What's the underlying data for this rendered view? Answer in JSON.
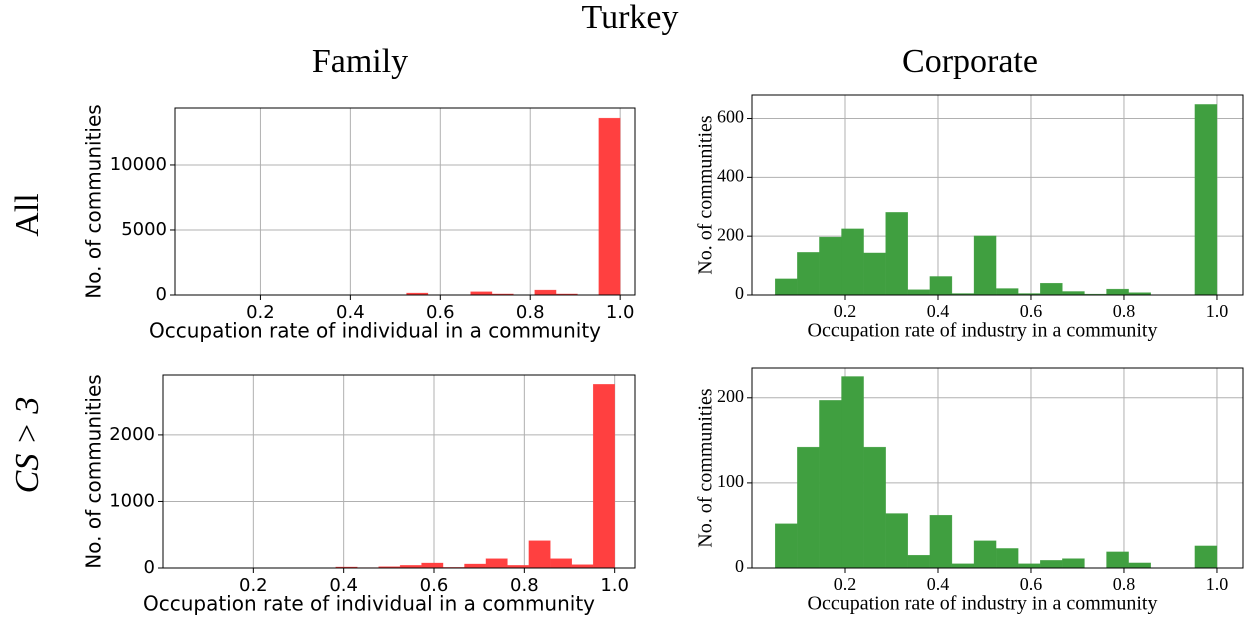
{
  "title": "Turkey",
  "column_titles": [
    "Family",
    "Corporate"
  ],
  "row_titles": [
    "All",
    "CS > 3"
  ],
  "chart_data": [
    {
      "type": "histogram",
      "xlabel": "Occupation rate of individual in a community",
      "ylabel": "No. of communities",
      "bins": [
        0.05,
        0.0975,
        0.145,
        0.1925,
        0.24,
        0.2875,
        0.335,
        0.3825,
        0.43,
        0.4775,
        0.525,
        0.5725,
        0.62,
        0.6675,
        0.715,
        0.7625,
        0.81,
        0.8575,
        0.905,
        0.9525,
        1.0
      ],
      "values": [
        0,
        0,
        0,
        0,
        0,
        0,
        0,
        0,
        0,
        0,
        150,
        20,
        0,
        250,
        80,
        0,
        380,
        80,
        0,
        13600
      ],
      "color": "#ff4040",
      "xlim": [
        0.01,
        1.033
      ],
      "ylim": [
        0,
        14380
      ],
      "xticks": [
        0.2,
        0.4,
        0.6,
        0.8,
        {
          "value": 1,
          "label": "1.0"
        }
      ],
      "yticks": [
        0,
        5000,
        10000
      ],
      "grid": true
    },
    {
      "type": "histogram",
      "xlabel": "Occupation rate of industry in a community",
      "ylabel": "No. of communities",
      "bins": [
        0.05,
        0.0975,
        0.145,
        0.1925,
        0.24,
        0.2875,
        0.335,
        0.3825,
        0.43,
        0.4775,
        0.525,
        0.5725,
        0.62,
        0.6675,
        0.715,
        0.7625,
        0.81,
        0.8575,
        0.905,
        0.9525,
        1.0
      ],
      "values": [
        55,
        145,
        197,
        225,
        143,
        281,
        18,
        63,
        5,
        201,
        22,
        5,
        40,
        12,
        3,
        20,
        8,
        0,
        0,
        648
      ],
      "color": "#409f40",
      "xlim": [
        0.0,
        1.056
      ],
      "ylim": [
        0,
        680
      ],
      "xticks": [
        0.2,
        0.4,
        0.6,
        0.8,
        {
          "value": 1,
          "label": "1.0"
        }
      ],
      "yticks": [
        0,
        200,
        400,
        600
      ],
      "grid": true
    },
    {
      "type": "histogram",
      "xlabel": "Occupation rate of individual in a community",
      "ylabel": "No. of communities",
      "bins": [
        0.05,
        0.0975,
        0.145,
        0.1925,
        0.24,
        0.2875,
        0.335,
        0.3825,
        0.43,
        0.4775,
        0.525,
        0.5725,
        0.62,
        0.6675,
        0.715,
        0.7625,
        0.81,
        0.8575,
        0.905,
        0.9525,
        1.0
      ],
      "values": [
        0,
        0,
        0,
        0,
        0,
        0,
        0,
        15,
        5,
        20,
        40,
        75,
        10,
        60,
        140,
        40,
        410,
        140,
        50,
        2760
      ],
      "color": "#ff4040",
      "xlim": [
        0.0,
        1.045
      ],
      "ylim": [
        0,
        2900
      ],
      "xticks": [
        0.2,
        0.4,
        0.6,
        0.8,
        {
          "value": 1,
          "label": "1.0"
        }
      ],
      "yticks": [
        0,
        1000,
        2000
      ],
      "grid": true
    },
    {
      "type": "histogram",
      "xlabel": "Occupation rate of industry in a community",
      "ylabel": "No. of communities",
      "bins": [
        0.05,
        0.0975,
        0.145,
        0.1925,
        0.24,
        0.2875,
        0.335,
        0.3825,
        0.43,
        0.4775,
        0.525,
        0.5725,
        0.62,
        0.6675,
        0.715,
        0.7625,
        0.81,
        0.8575,
        0.905,
        0.9525,
        1.0
      ],
      "values": [
        52,
        142,
        197,
        225,
        142,
        64,
        15,
        62,
        5,
        32,
        23,
        5,
        9,
        11,
        0,
        19,
        6,
        0,
        0,
        26
      ],
      "color": "#409f40",
      "xlim": [
        0.0,
        1.056
      ],
      "ylim": [
        0,
        235
      ],
      "xticks": [
        0.2,
        0.4,
        0.6,
        0.8,
        {
          "value": 1,
          "label": "1.0"
        }
      ],
      "yticks": [
        0,
        100,
        200
      ],
      "grid": true
    }
  ]
}
